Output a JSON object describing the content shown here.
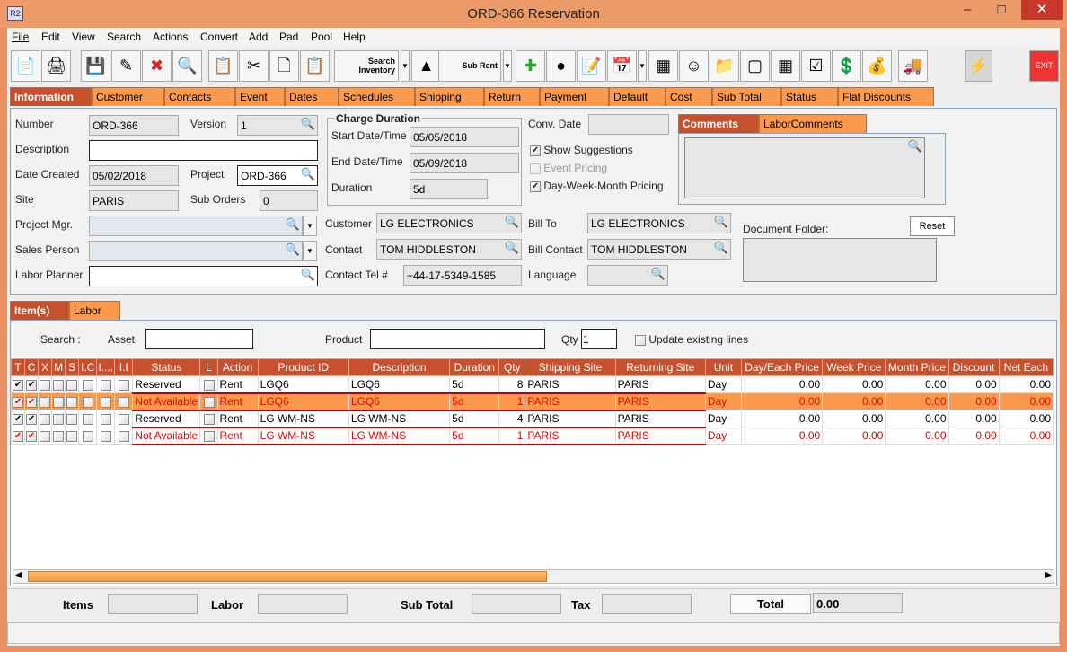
{
  "window": {
    "title": "ORD-366 Reservation",
    "app_icon": "R2"
  },
  "menu": [
    "File",
    "Edit",
    "View",
    "Search",
    "Actions",
    "Convert",
    "Add",
    "Pad",
    "Pool",
    "Help"
  ],
  "toolbar": {
    "search_inventory": "Search Inventory",
    "sub_rent": "Sub Rent",
    "exit": "EXIT"
  },
  "tabs": [
    "Information",
    "Customer",
    "Contacts",
    "Event",
    "Dates",
    "Schedules",
    "Shipping",
    "Return",
    "Payment",
    "Default",
    "Cost",
    "Sub Total",
    "Status",
    "Flat Discounts"
  ],
  "info": {
    "number_label": "Number",
    "number": "ORD-366",
    "version_label": "Version",
    "version": "1",
    "description_label": "Description",
    "description": "",
    "date_created_label": "Date Created",
    "date_created": "05/02/2018",
    "project_label": "Project",
    "project": "ORD-366",
    "site_label": "Site",
    "site": "PARIS",
    "sub_orders_label": "Sub Orders",
    "sub_orders": "0",
    "project_mgr_label": "Project Mgr.",
    "sales_person_label": "Sales Person",
    "labor_planner_label": "Labor Planner",
    "charge_duration_title": "Charge Duration",
    "start_label": "Start Date/Time",
    "start": "05/05/2018",
    "end_label": "End Date/Time",
    "end": "05/09/2018",
    "duration_label": "Duration",
    "duration": "5d",
    "customer_label": "Customer",
    "customer": "LG ELECTRONICS",
    "contact_label": "Contact",
    "contact": "TOM HIDDLESTON",
    "contact_tel_label": "Contact Tel #",
    "contact_tel": "+44-17-5349-1585",
    "conv_date_label": "Conv. Date",
    "show_suggestions": "Show Suggestions",
    "event_pricing": "Event Pricing",
    "dwm_pricing": "Day-Week-Month Pricing",
    "bill_to_label": "Bill To",
    "bill_to": "LG ELECTRONICS",
    "bill_contact_label": "Bill Contact",
    "bill_contact": "TOM HIDDLESTON",
    "language_label": "Language",
    "comments_tab": "Comments",
    "labor_comments_tab": "LaborComments",
    "document_folder_label": "Document Folder:",
    "reset": "Reset"
  },
  "item_tabs": [
    "Item(s)",
    "Labor"
  ],
  "items": {
    "search_label": "Search :",
    "asset_label": "Asset",
    "product_label": "Product",
    "qty_label": "Qty",
    "qty": "1",
    "update_label": "Update existing lines",
    "columns": [
      "T",
      "C",
      "X",
      "M",
      "S",
      "I.C",
      "I....",
      "I.I",
      "Status",
      "L",
      "Action",
      "Product ID",
      "Description",
      "Duration",
      "Qty",
      "Shipping Site",
      "Returning Site",
      "Unit",
      "Day/Each Price",
      "Week Price",
      "Month Price",
      "Discount",
      "Net Each"
    ],
    "rows": [
      {
        "t": true,
        "c": true,
        "status": "Reserved",
        "action": "Rent",
        "product_id": "LGQ6",
        "description": "LGQ6",
        "duration": "5d",
        "qty": "8",
        "ship": "PARIS",
        "ret": "PARIS",
        "unit": "Day",
        "day": "0.00",
        "week": "0.00",
        "month": "0.00",
        "discount": "0.00",
        "net": "0.00",
        "na": false,
        "sel": false
      },
      {
        "t": true,
        "c": true,
        "status": "Not Available",
        "action": "Rent",
        "product_id": "LGQ6",
        "description": "LGQ6",
        "duration": "5d",
        "qty": "1",
        "ship": "PARIS",
        "ret": "PARIS",
        "unit": "Day",
        "day": "0.00",
        "week": "0.00",
        "month": "0.00",
        "discount": "0.00",
        "net": "0.00",
        "na": true,
        "sel": true
      },
      {
        "t": true,
        "c": true,
        "status": "Reserved",
        "action": "Rent",
        "product_id": "LG WM-NS",
        "description": "LG WM-NS",
        "duration": "5d",
        "qty": "4",
        "ship": "PARIS",
        "ret": "PARIS",
        "unit": "Day",
        "day": "0.00",
        "week": "0.00",
        "month": "0.00",
        "discount": "0.00",
        "net": "0.00",
        "na": false,
        "sel": false
      },
      {
        "t": true,
        "c": true,
        "status": "Not Available",
        "action": "Rent",
        "product_id": "LG WM-NS",
        "description": "LG WM-NS",
        "duration": "5d",
        "qty": "1",
        "ship": "PARIS",
        "ret": "PARIS",
        "unit": "Day",
        "day": "0.00",
        "week": "0.00",
        "month": "0.00",
        "discount": "0.00",
        "net": "0.00",
        "na": true,
        "sel": false
      }
    ]
  },
  "totals": {
    "items_label": "Items",
    "labor_label": "Labor",
    "sub_total_label": "Sub Total",
    "tax_label": "Tax",
    "total_label": "Total",
    "total": "0.00"
  },
  "colors": {
    "tab": "#fb9a4c",
    "active_tab": "#c7502e",
    "error": "#e00000"
  }
}
